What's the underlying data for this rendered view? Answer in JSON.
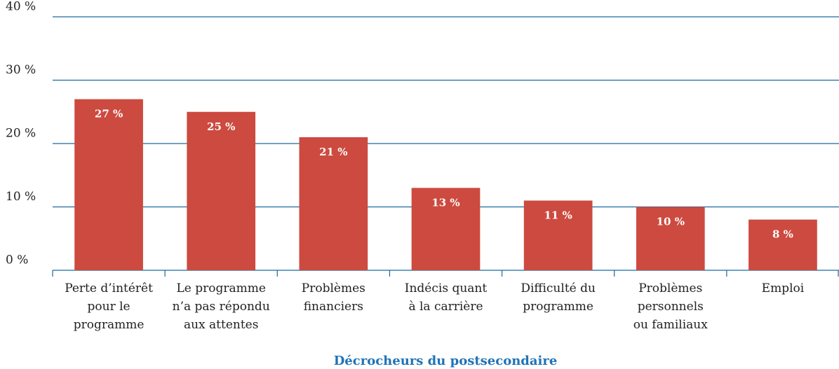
{
  "chart_data": {
    "type": "bar",
    "x_label": "Décrocheurs du postsecondaire",
    "categories": [
      "Perte d’intérêt\npour le\nprogramme",
      "Le programme\nn’a pas répondu\naux attentes",
      "Problèmes\nfinanciers",
      "Indécis quant\nà la carrière",
      "Difficulté du\nprogramme",
      "Problèmes\npersonnels\nou familiaux",
      "Emploi"
    ],
    "values": [
      27,
      25,
      21,
      13,
      11,
      10,
      8
    ],
    "value_labels": [
      "27 %",
      "25 %",
      "21 %",
      "13 %",
      "11 %",
      "10 %",
      "8 %"
    ],
    "color": "#cc4a3f",
    "ylim": [
      0,
      40
    ],
    "yticks": [
      {
        "value": 0,
        "label": "0 %"
      },
      {
        "value": 10,
        "label": "10 %"
      },
      {
        "value": 20,
        "label": "20 %"
      },
      {
        "value": 30,
        "label": "30 %"
      },
      {
        "value": 40,
        "label": "40 %"
      }
    ],
    "grid": true
  }
}
